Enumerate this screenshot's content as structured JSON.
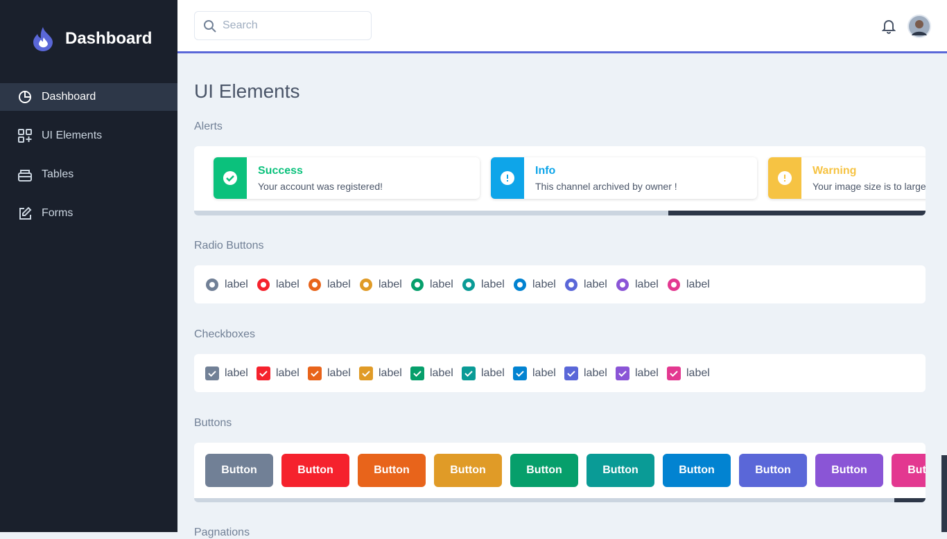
{
  "sidebar": {
    "brand": "Dashboard",
    "nav": [
      "Dashboard",
      "UI Elements",
      "Tables",
      "Forms"
    ]
  },
  "header": {
    "search_placeholder": "Search"
  },
  "page_title": "UI Elements",
  "sections": {
    "alerts": {
      "title": "Alerts",
      "items": [
        {
          "title": "Success",
          "message": "Your account was registered!"
        },
        {
          "title": "Info",
          "message": "This channel archived by owner !"
        },
        {
          "title": "Warning",
          "message": "Your image size is to large"
        }
      ]
    },
    "radios": {
      "title": "Radio Buttons",
      "labels": [
        "label",
        "label",
        "label",
        "label",
        "label",
        "label",
        "label",
        "label",
        "label",
        "label"
      ]
    },
    "checkboxes": {
      "title": "Checkboxes",
      "labels": [
        "label",
        "label",
        "label",
        "label",
        "label",
        "label",
        "label",
        "label",
        "label",
        "label"
      ]
    },
    "buttons": {
      "title": "Buttons",
      "labels": [
        "Button",
        "Button",
        "Button",
        "Button",
        "Button",
        "Button",
        "Button",
        "Button",
        "Button",
        "Button"
      ]
    },
    "paginations": {
      "title": "Pagnations"
    }
  }
}
